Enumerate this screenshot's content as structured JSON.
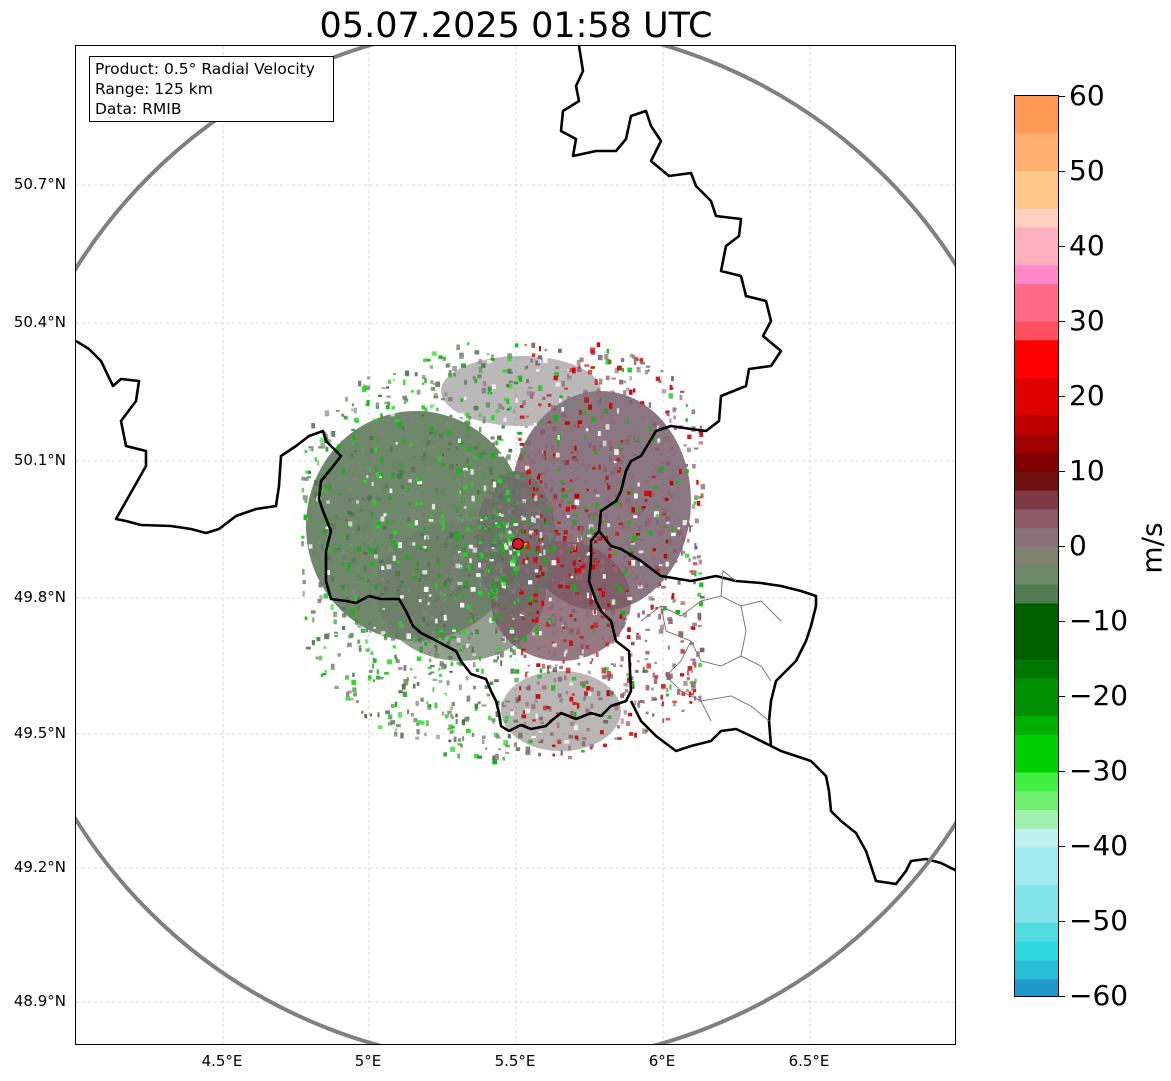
{
  "title": "05.07.2025 01:58 UTC",
  "info": {
    "product": "Product: 0.5° Radial Velocity",
    "range": "Range: 125 km",
    "data": "Data: RMIB"
  },
  "axes": {
    "lat_ticks": [
      "50.7°N",
      "50.4°N",
      "50.1°N",
      "49.8°N",
      "49.5°N",
      "49.2°N",
      "48.9°N"
    ],
    "lon_ticks": [
      "4.5°E",
      "5°E",
      "5.5°E",
      "6°E",
      "6.5°E"
    ]
  },
  "colorbar": {
    "unit": "m/s",
    "ticks": [
      "60",
      "50",
      "40",
      "30",
      "20",
      "10",
      "0",
      "−10",
      "−20",
      "−30",
      "−40",
      "−50",
      "−60"
    ],
    "min": -60,
    "max": 60
  },
  "colors": {
    "range_ring": "#808080",
    "border": "#000000",
    "radar_site": "#e8141b"
  }
}
